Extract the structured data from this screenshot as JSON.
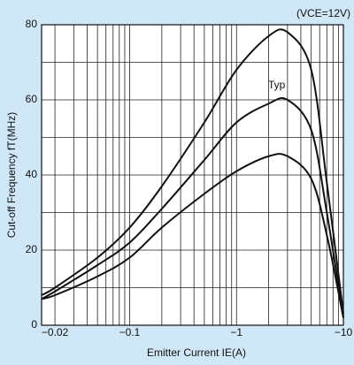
{
  "chart_data": {
    "type": "line",
    "annotation": "(VCE=12V)",
    "series_label": "Typ",
    "xlabel": "Emitter Current IE(A)",
    "ylabel": "Cut-off Frequency fT(MHz)",
    "x": [
      -0.015,
      -0.02,
      -0.05,
      -0.1,
      -0.2,
      -0.5,
      -1,
      -2,
      -3,
      -5,
      -7,
      -10
    ],
    "series": [
      {
        "color": "#111111",
        "values": [
          8,
          10,
          18,
          26,
          37,
          54,
          68,
          77,
          78,
          68,
          38,
          3
        ]
      },
      {
        "color": "#111111",
        "values": [
          7,
          9,
          16,
          22,
          31,
          44,
          54,
          59,
          60,
          52,
          30,
          2
        ]
      },
      {
        "color": "#111111",
        "values": [
          7,
          8,
          13,
          18,
          26,
          35,
          41,
          45,
          45,
          39,
          24,
          2
        ]
      }
    ],
    "xscale": "log",
    "xlim": [
      -0.015,
      -10
    ],
    "xticks": [
      {
        "value": -0.02,
        "label": "−0.02"
      },
      {
        "value": -0.1,
        "label": "−0.1"
      },
      {
        "value": -1,
        "label": "−1"
      },
      {
        "value": -10,
        "label": "−10"
      }
    ],
    "minor_xticks": [
      -0.03,
      -0.04,
      -0.05,
      -0.06,
      -0.07,
      -0.08,
      -0.09,
      -0.2,
      -0.3,
      -0.4,
      -0.5,
      -0.6,
      -0.7,
      -0.8,
      -0.9,
      -2,
      -3,
      -4,
      -5,
      -6,
      -7,
      -8,
      -9
    ],
    "ylim": [
      0,
      80
    ],
    "yticks": [
      0,
      20,
      40,
      60,
      80
    ],
    "minor_yticks": [
      10,
      30,
      50,
      70
    ],
    "grid": true
  }
}
